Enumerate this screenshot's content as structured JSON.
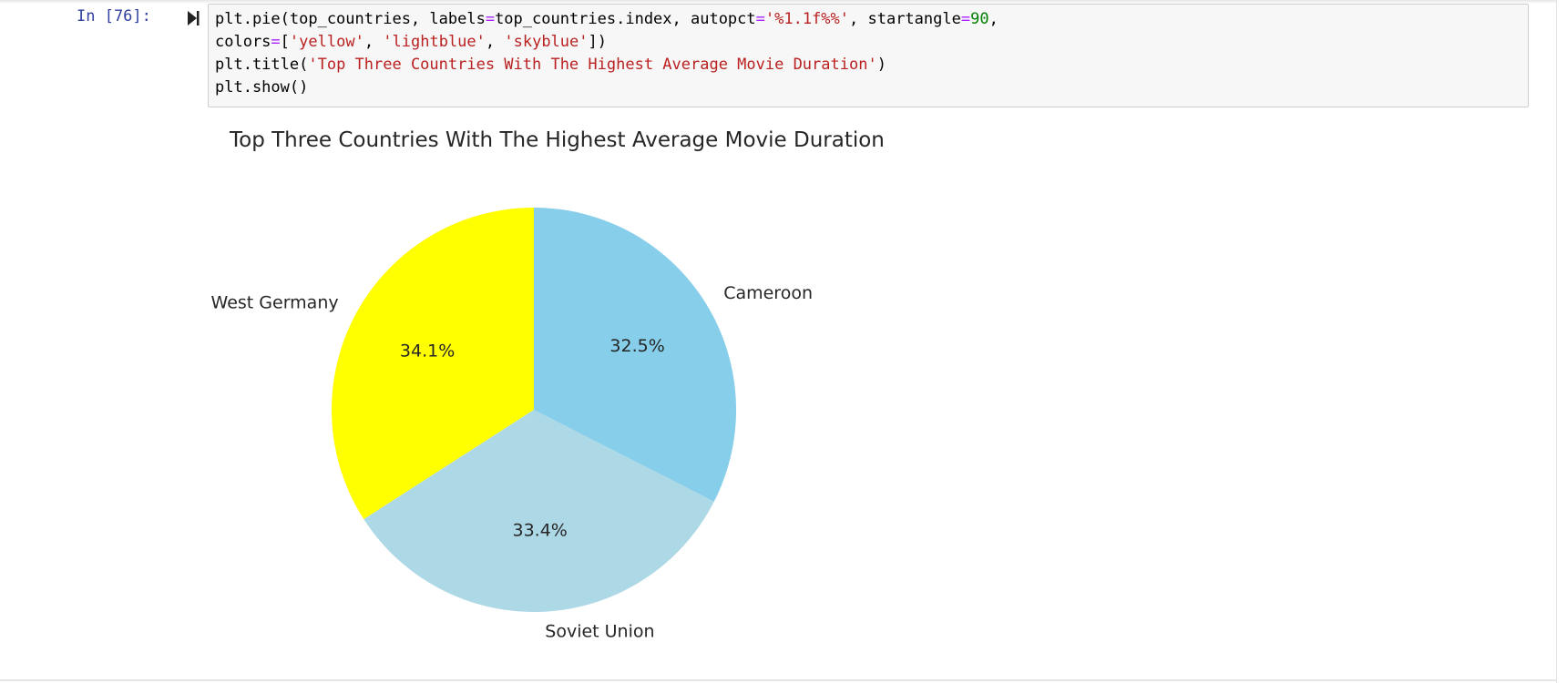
{
  "cell": {
    "prompt": "In [76]:",
    "run_icon": "run-cell-icon",
    "code_lines": [
      [
        {
          "t": "plt.pie(top_countries, labels",
          "c": ""
        },
        {
          "t": "=",
          "c": "op"
        },
        {
          "t": "top_countries.index, autopct",
          "c": ""
        },
        {
          "t": "=",
          "c": "op"
        },
        {
          "t": "'%1.1f%%'",
          "c": "str"
        },
        {
          "t": ", startangle",
          "c": ""
        },
        {
          "t": "=",
          "c": "op"
        },
        {
          "t": "90",
          "c": "num"
        },
        {
          "t": ",",
          "c": ""
        }
      ],
      [
        {
          "t": "colors",
          "c": ""
        },
        {
          "t": "=",
          "c": "op"
        },
        {
          "t": "[",
          "c": ""
        },
        {
          "t": "'yellow'",
          "c": "str"
        },
        {
          "t": ", ",
          "c": ""
        },
        {
          "t": "'lightblue'",
          "c": "str"
        },
        {
          "t": ", ",
          "c": ""
        },
        {
          "t": "'skyblue'",
          "c": "str"
        },
        {
          "t": "])",
          "c": ""
        }
      ],
      [
        {
          "t": "plt.title(",
          "c": ""
        },
        {
          "t": "'Top Three Countries With The Highest Average Movie Duration'",
          "c": "str"
        },
        {
          "t": ")",
          "c": ""
        }
      ],
      [
        {
          "t": "plt.show()",
          "c": ""
        }
      ]
    ]
  },
  "chart_data": {
    "type": "pie",
    "title": "Top Three Countries With The Highest Average Movie Duration",
    "startangle": 90,
    "slices": [
      {
        "label": "West Germany",
        "value": 34.1,
        "pct_label": "34.1%",
        "color": "#ffff00"
      },
      {
        "label": "Soviet Union",
        "value": 33.4,
        "pct_label": "33.4%",
        "color": "#add8e6"
      },
      {
        "label": "Cameroon",
        "value": 32.5,
        "pct_label": "32.5%",
        "color": "#87ceeb"
      }
    ]
  }
}
